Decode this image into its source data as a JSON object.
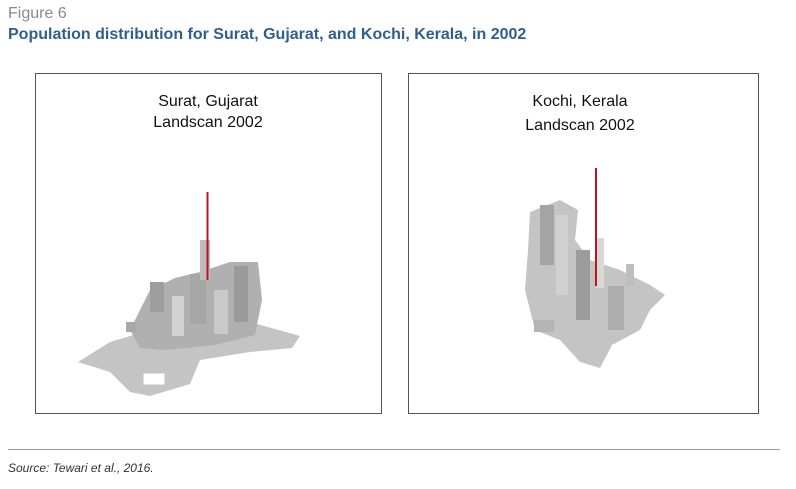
{
  "figure": {
    "label": "Figure 6",
    "title": "Population distribution for Surat, Gujarat, and Kochi, Kerala, in 2002"
  },
  "panels": [
    {
      "title_lines": [
        "Surat, Gujarat",
        "Landscan 2002"
      ]
    },
    {
      "title_lines": [
        "Kochi, Kerala",
        "Landscan 2002"
      ]
    }
  ],
  "source": "Source: Tewari et al., 2016."
}
